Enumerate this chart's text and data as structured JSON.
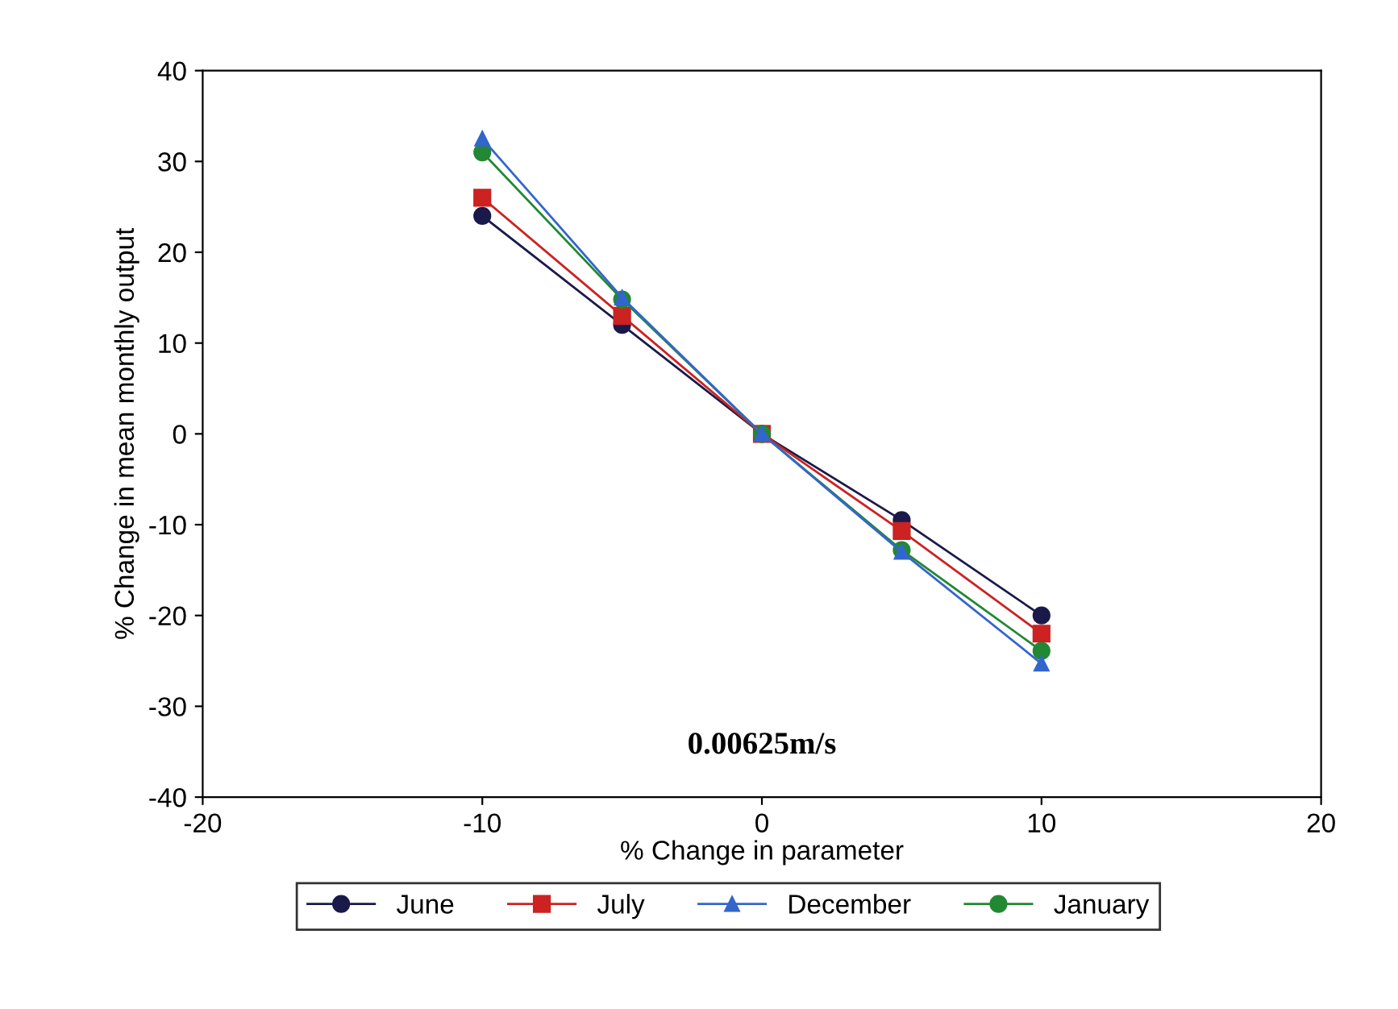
{
  "chart_data": {
    "type": "line",
    "xlabel": "% Change in parameter",
    "ylabel": "% Change in mean monthly output",
    "annotations": [
      "0.00625m/s"
    ],
    "x": [
      -10,
      -5,
      0,
      5,
      10
    ],
    "series": [
      {
        "name": "June",
        "color": "#1a1a4a",
        "marker": "circle",
        "values": [
          24,
          12,
          0,
          -9.5,
          -20
        ]
      },
      {
        "name": "July",
        "color": "#cc2222",
        "marker": "square",
        "values": [
          26,
          13,
          0,
          -10.7,
          -22
        ]
      },
      {
        "name": "December",
        "color": "#3366cc",
        "marker": "triangle",
        "values": [
          32.5,
          15,
          0,
          -13,
          -25.3
        ]
      },
      {
        "name": "January",
        "color": "#228833",
        "marker": "circle",
        "values": [
          31,
          14.8,
          0,
          -12.8,
          -23.9
        ]
      }
    ],
    "xlim": [
      -20,
      20
    ],
    "xticks": [
      -20,
      -10,
      0,
      10,
      20
    ],
    "ylim": [
      -40,
      40
    ],
    "yticks": [
      -40,
      -30,
      -20,
      -10,
      0,
      10,
      20,
      30,
      40
    ],
    "grid": false,
    "legend": "bottom",
    "line_style": "solid"
  }
}
